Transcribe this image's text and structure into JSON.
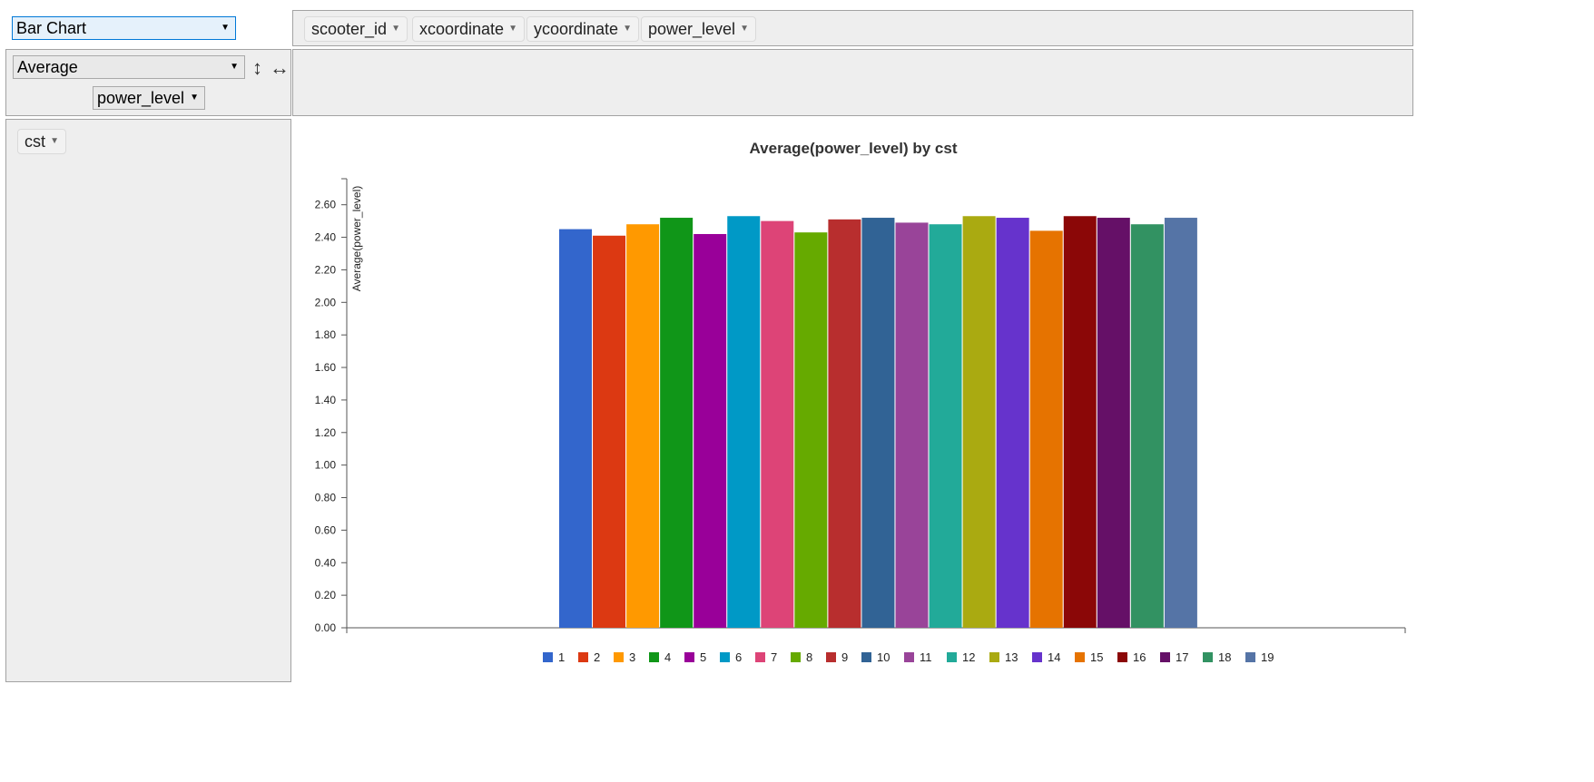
{
  "renderer_select": {
    "value": "Bar Chart"
  },
  "column_fields": [
    "scooter_id",
    "xcoordinate",
    "ycoordinate",
    "power_level"
  ],
  "aggregator_select": {
    "value": "Average"
  },
  "aggregator_attr_select": {
    "value": "power_level"
  },
  "row_fields": [
    "cst"
  ],
  "icons": {
    "sort_rows": "vertical-arrow-icon",
    "sort_cols": "horizontal-arrow-icon",
    "dropdown": "triangle-down-icon"
  },
  "chart_data": {
    "type": "bar",
    "title": "Average(power_level) by cst",
    "xlabel": "",
    "ylabel": "Average(power_level)",
    "ylim": [
      0,
      2.76
    ],
    "yticks": [
      0,
      0.2,
      0.4,
      0.6,
      0.8,
      1.0,
      1.2,
      1.4,
      1.6,
      1.8,
      2.0,
      2.2,
      2.4,
      2.6
    ],
    "ytick_labels": [
      "0.00",
      "0.20",
      "0.40",
      "0.60",
      "0.80",
      "1.00",
      "1.20",
      "1.40",
      "1.60",
      "1.80",
      "2.00",
      "2.20",
      "2.40",
      "2.60"
    ],
    "grid": false,
    "legend_position": "bottom",
    "series": [
      {
        "name": "1",
        "value": 2.45,
        "color": "#3366cc"
      },
      {
        "name": "2",
        "value": 2.41,
        "color": "#dc3912"
      },
      {
        "name": "3",
        "value": 2.48,
        "color": "#ff9900"
      },
      {
        "name": "4",
        "value": 2.52,
        "color": "#109618"
      },
      {
        "name": "5",
        "value": 2.42,
        "color": "#990099"
      },
      {
        "name": "6",
        "value": 2.53,
        "color": "#0099c6"
      },
      {
        "name": "7",
        "value": 2.5,
        "color": "#dd4477"
      },
      {
        "name": "8",
        "value": 2.43,
        "color": "#66aa00"
      },
      {
        "name": "9",
        "value": 2.51,
        "color": "#b82e2e"
      },
      {
        "name": "10",
        "value": 2.52,
        "color": "#316395"
      },
      {
        "name": "11",
        "value": 2.49,
        "color": "#994499"
      },
      {
        "name": "12",
        "value": 2.48,
        "color": "#22aa99"
      },
      {
        "name": "13",
        "value": 2.53,
        "color": "#aaaa11"
      },
      {
        "name": "14",
        "value": 2.52,
        "color": "#6633cc"
      },
      {
        "name": "15",
        "value": 2.44,
        "color": "#e67300"
      },
      {
        "name": "16",
        "value": 2.53,
        "color": "#8b0707"
      },
      {
        "name": "17",
        "value": 2.52,
        "color": "#651067"
      },
      {
        "name": "18",
        "value": 2.48,
        "color": "#329262"
      },
      {
        "name": "19",
        "value": 2.52,
        "color": "#5574a6"
      }
    ]
  }
}
